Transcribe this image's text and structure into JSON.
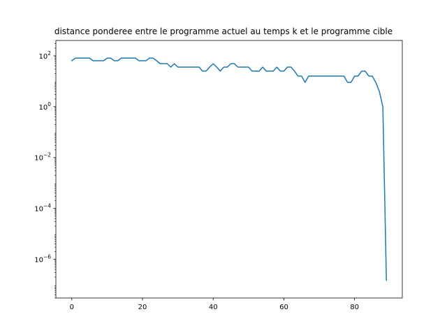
{
  "chart_data": {
    "type": "line",
    "title": "distance ponderee entre le programme actuel au temps k et le programme cible",
    "xlabel": "",
    "ylabel": "",
    "yscale": "log",
    "xlim": [
      -4.5,
      93.5
    ],
    "ylim": [
      3e-08,
      400
    ],
    "grid": false,
    "legend": "none",
    "x_ticks": [
      {
        "value": 0,
        "label": "0"
      },
      {
        "value": 20,
        "label": "20"
      },
      {
        "value": 40,
        "label": "40"
      },
      {
        "value": 60,
        "label": "60"
      },
      {
        "value": 80,
        "label": "80"
      }
    ],
    "y_ticks": [
      {
        "value": 100,
        "base": "10",
        "exp": "2"
      },
      {
        "value": 1,
        "base": "10",
        "exp": "0"
      },
      {
        "value": 0.01,
        "base": "10",
        "exp": "−2"
      },
      {
        "value": 0.0001,
        "base": "10",
        "exp": "−4"
      },
      {
        "value": 1e-06,
        "base": "10",
        "exp": "−6"
      }
    ],
    "series": [
      {
        "color": "#1f77b4",
        "x": [
          0,
          1,
          2,
          3,
          4,
          5,
          6,
          7,
          8,
          9,
          10,
          11,
          12,
          13,
          14,
          15,
          16,
          17,
          18,
          19,
          20,
          21,
          22,
          23,
          24,
          25,
          26,
          27,
          28,
          29,
          30,
          31,
          32,
          33,
          34,
          35,
          36,
          37,
          38,
          39,
          40,
          41,
          42,
          43,
          44,
          45,
          46,
          47,
          48,
          49,
          50,
          51,
          52,
          53,
          54,
          55,
          56,
          57,
          58,
          59,
          60,
          61,
          62,
          63,
          64,
          65,
          66,
          67,
          68,
          69,
          70,
          71,
          72,
          73,
          74,
          75,
          76,
          77,
          78,
          79,
          80,
          81,
          82,
          83,
          84,
          85,
          86,
          87,
          88,
          89
        ],
        "y": [
          64,
          81,
          81,
          81,
          81,
          81,
          64,
          64,
          64,
          64,
          81,
          81,
          64,
          64,
          81,
          81,
          81,
          81,
          81,
          64,
          64,
          64,
          81,
          81,
          64,
          49,
          49,
          49,
          36,
          49,
          36,
          36,
          36,
          36,
          36,
          36,
          36,
          25,
          25,
          36,
          49,
          36,
          25,
          36,
          36,
          49,
          49,
          36,
          36,
          36,
          36,
          25,
          25,
          25,
          36,
          25,
          25,
          25,
          36,
          25,
          25,
          36,
          36,
          25,
          16,
          16,
          9,
          16,
          16,
          16,
          16,
          16,
          16,
          16,
          16,
          16,
          16,
          16,
          9,
          9,
          16,
          16,
          25,
          25,
          16,
          16,
          9,
          4,
          1,
          1.5e-07
        ]
      }
    ]
  }
}
